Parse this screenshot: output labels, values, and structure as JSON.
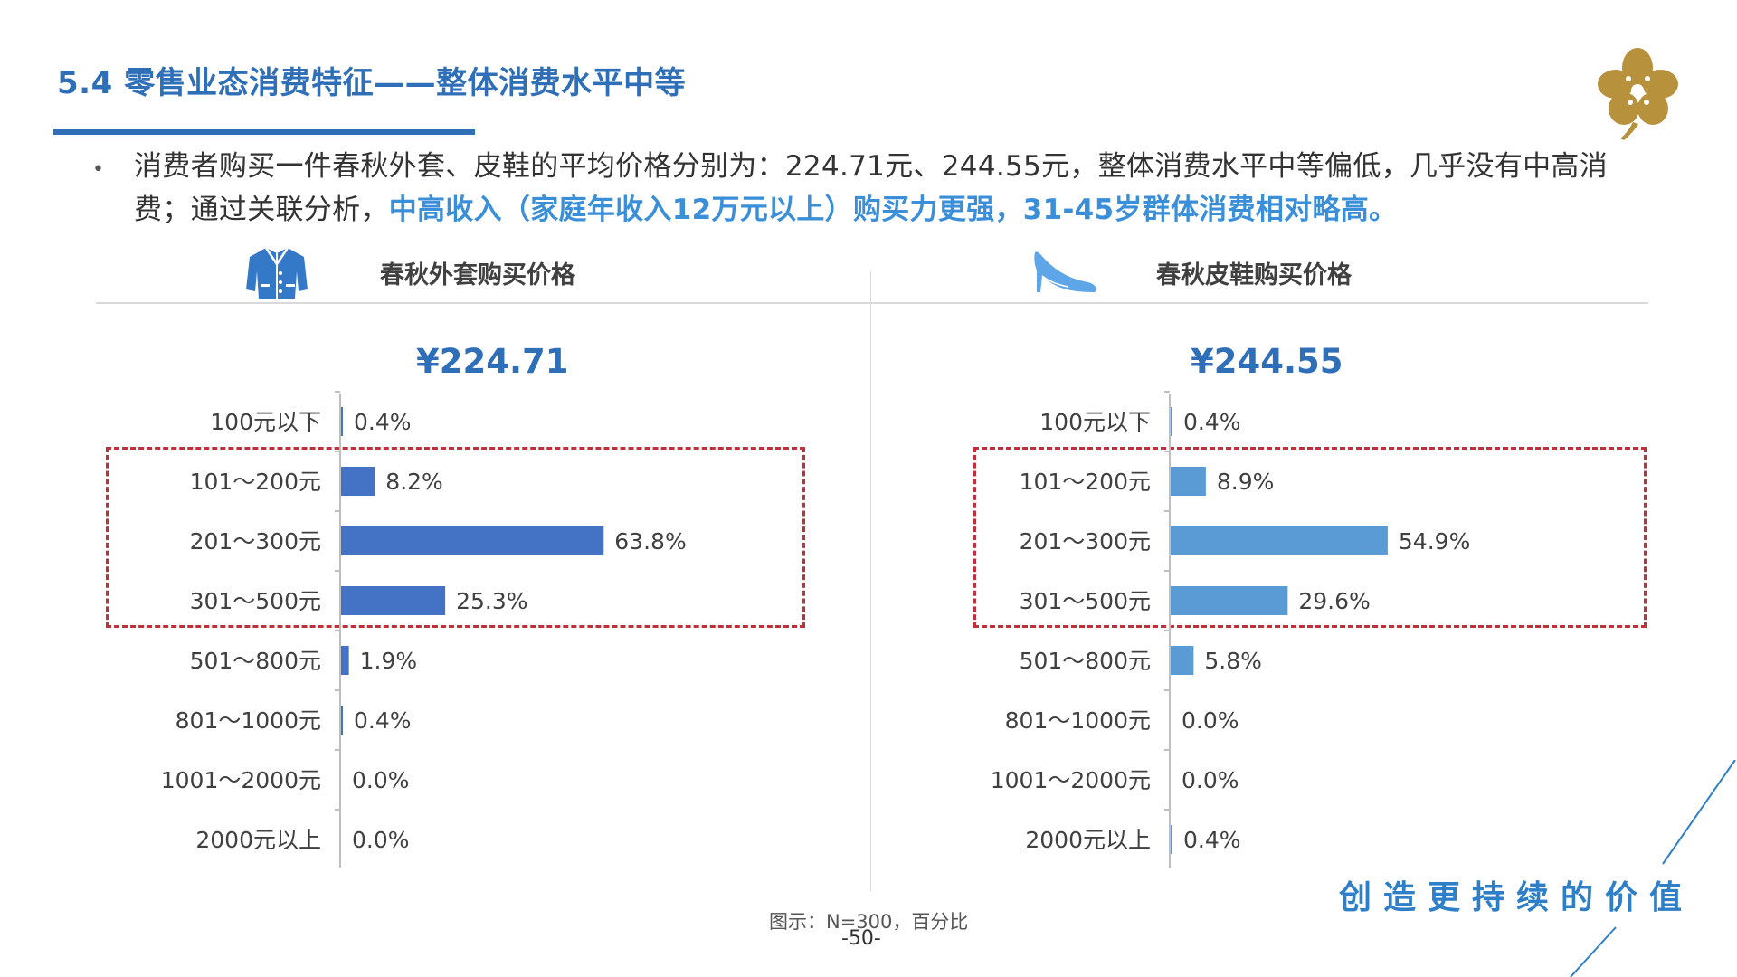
{
  "header": {
    "title": "5.4 零售业态消费特征——整体消费水平中等"
  },
  "summary": {
    "bullet": "•",
    "text_plain": "消费者购买一件春秋外套、皮鞋的平均价格分别为：224.71元、244.55元，整体消费水平中等偏低，几乎没有中高消费；通过关联分析，",
    "text_highlight": "中高收入（家庭年收入12万元以上）购买力更强，31-45岁群体消费相对略高。"
  },
  "panels": {
    "coat": {
      "icon": "jacket-icon",
      "title": "春秋外套购买价格",
      "avg_price": "¥224.71"
    },
    "shoes": {
      "icon": "high-heel-icon",
      "title": "春秋皮鞋购买价格",
      "avg_price": "¥244.55"
    }
  },
  "footer": {
    "note": "图示：N=300，百分比",
    "page": "-50-",
    "slogan": "创造更持续的价值"
  },
  "colors": {
    "coat_bar": "#4472c4",
    "shoes_bar": "#5b9bd5",
    "title_blue": "#2f6fb8",
    "highlight_blue": "#3a8fd8",
    "dashed_box": "#c0303a",
    "logo_gold": "#b8913c"
  },
  "chart_data": [
    {
      "type": "bar",
      "orientation": "horizontal",
      "title": "春秋外套购买价格",
      "categories": [
        "100元以下",
        "101～200元",
        "201～300元",
        "301～500元",
        "501～800元",
        "801～1000元",
        "1001～2000元",
        "2000元以上"
      ],
      "values": [
        0.4,
        8.2,
        63.8,
        25.3,
        1.9,
        0.4,
        0.0,
        0.0
      ],
      "data_labels": [
        "0.4%",
        "8.2%",
        "63.8%",
        "25.3%",
        "1.9%",
        "0.4%",
        "0.0%",
        "0.0%"
      ],
      "unit": "%",
      "xlim": [
        0,
        100
      ],
      "highlighted_categories": [
        "101～200元",
        "201～300元",
        "301～500元"
      ],
      "grid": false
    },
    {
      "type": "bar",
      "orientation": "horizontal",
      "title": "春秋皮鞋购买价格",
      "categories": [
        "100元以下",
        "101～200元",
        "201～300元",
        "301～500元",
        "501～800元",
        "801～1000元",
        "1001～2000元",
        "2000元以上"
      ],
      "values": [
        0.4,
        8.9,
        54.9,
        29.6,
        5.8,
        0.0,
        0.0,
        0.4
      ],
      "data_labels": [
        "0.4%",
        "8.9%",
        "54.9%",
        "29.6%",
        "5.8%",
        "0.0%",
        "0.0%",
        "0.4%"
      ],
      "unit": "%",
      "xlim": [
        0,
        100
      ],
      "highlighted_categories": [
        "101～200元",
        "201～300元",
        "301～500元"
      ],
      "grid": false
    }
  ]
}
